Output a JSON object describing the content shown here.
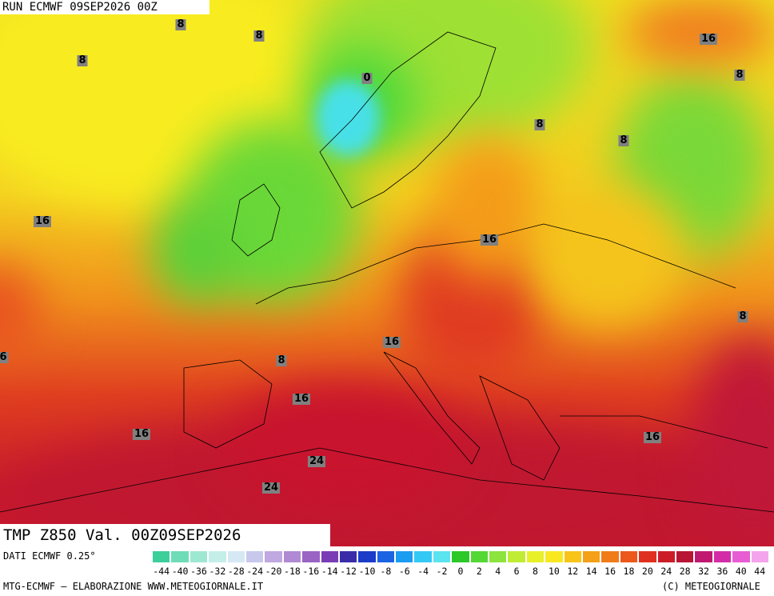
{
  "header": {
    "run": "RUN ECMWF 09SEP2026 00Z"
  },
  "map": {
    "contour_labels": [
      "8",
      "8",
      "8",
      "0",
      "16",
      "8",
      "8",
      "8",
      "16",
      "16",
      "6",
      "8",
      "16",
      "8",
      "16",
      "16",
      "16",
      "24",
      "24"
    ]
  },
  "footer": {
    "title": "TMP Z850 Val. 00Z09SEP2026",
    "source": "DATI ECMWF 0.25°",
    "credit": "MTG-ECMWF – ELABORAZIONE WWW.METEOGIORNALE.IT",
    "copyright": "(C) METEOGIORNALE"
  },
  "legend": {
    "labels": [
      -44,
      -40,
      -36,
      -32,
      -28,
      -24,
      -20,
      -18,
      -16,
      -14,
      -12,
      -10,
      -8,
      -6,
      -4,
      -2,
      0,
      2,
      4,
      6,
      8,
      10,
      12,
      14,
      16,
      18,
      20,
      24,
      28,
      32,
      36,
      40,
      44
    ],
    "colors": [
      "#3ccf9c",
      "#6fdcb8",
      "#9ee8d2",
      "#c4efe8",
      "#d6e8f4",
      "#c8c8ec",
      "#c0a8e0",
      "#b08ad4",
      "#9a64c4",
      "#7a3cb4",
      "#3a2ca8",
      "#1a3cc8",
      "#1a64e4",
      "#1a9cf0",
      "#34c8f4",
      "#5ae4f0",
      "#2cc828",
      "#54d834",
      "#8ce43c",
      "#c0ec34",
      "#e8f028",
      "#f8e820",
      "#f8c418",
      "#f4a018",
      "#f07c18",
      "#ec581c",
      "#e03020",
      "#cc1c28",
      "#b81434",
      "#c01870",
      "#d42ca8",
      "#e85cd4",
      "#f4a4ec"
    ]
  }
}
